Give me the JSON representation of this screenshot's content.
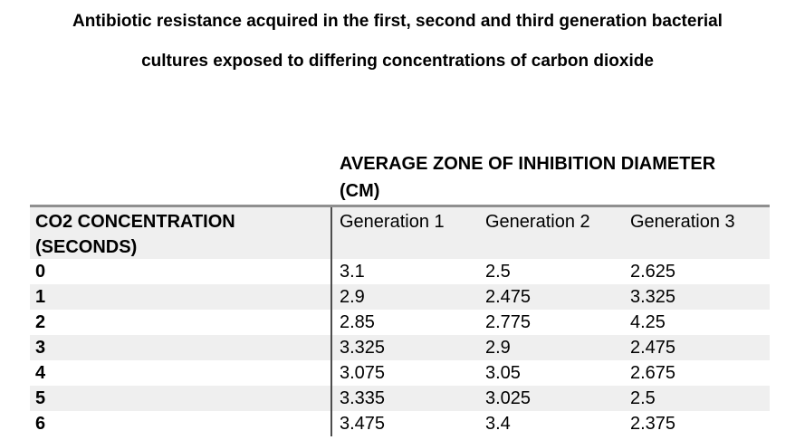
{
  "title": {
    "line1": "Antibiotic resistance acquired in the first, second and third generation bacterial",
    "line2": "cultures exposed to differing concentrations of carbon dioxide"
  },
  "table": {
    "span_header": {
      "line1": "AVERAGE ZONE OF INHIBITION DIAMETER",
      "line2": "(CM)"
    },
    "row_header": {
      "line1": "CO2 CONCENTRATION",
      "line2": "(SECONDS)"
    },
    "columns": [
      "Generation 1",
      "Generation 2",
      "Generation 3"
    ],
    "rows": [
      {
        "label": "0",
        "values": [
          "3.1",
          "2.5",
          "2.625"
        ]
      },
      {
        "label": "1",
        "values": [
          "2.9",
          "2.475",
          "3.325"
        ]
      },
      {
        "label": "2",
        "values": [
          "2.85",
          "2.775",
          "4.25"
        ]
      },
      {
        "label": "3",
        "values": [
          "3.325",
          "2.9",
          "2.475"
        ]
      },
      {
        "label": "4",
        "values": [
          "3.075",
          "3.05",
          "2.675"
        ]
      },
      {
        "label": "5",
        "values": [
          "3.335",
          "3.025",
          "2.5"
        ]
      },
      {
        "label": "6",
        "values": [
          "3.475",
          "3.4",
          "2.375"
        ]
      }
    ],
    "colors": {
      "stripe": "#efefef",
      "top_border": "#8f8f8f",
      "divider": "#4d4d4d"
    }
  }
}
